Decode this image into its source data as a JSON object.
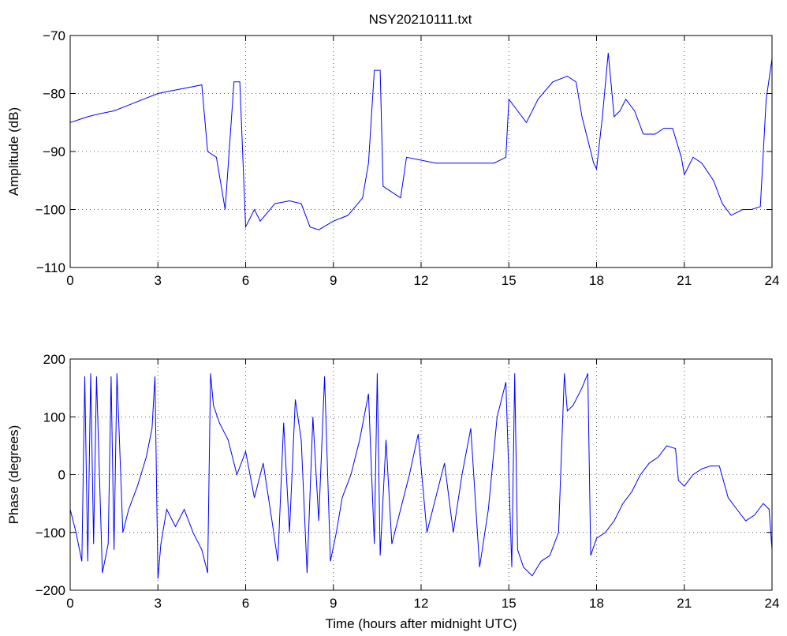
{
  "title": "NSY20210111.txt",
  "colors": {
    "series": "#0000ff",
    "axes": "#000000",
    "background": "#ffffff"
  },
  "chart_data": [
    {
      "type": "line",
      "name": "amplitude-panel",
      "title": "NSY20210111.txt",
      "xlabel": "",
      "ylabel": "Amplitude (dB)",
      "xlim": [
        0,
        24
      ],
      "ylim": [
        -110,
        -70
      ],
      "xticks": [
        0,
        3,
        6,
        9,
        12,
        15,
        18,
        21,
        24
      ],
      "yticks": [
        -110,
        -100,
        -90,
        -80,
        -70
      ],
      "grid": true,
      "series": [
        {
          "color": "#0000ff",
          "x": [
            0,
            0.3,
            0.6,
            1,
            1.5,
            2,
            2.5,
            3,
            3.5,
            4,
            4.5,
            4.7,
            5,
            5.3,
            5.6,
            5.8,
            6,
            6.3,
            6.5,
            7,
            7.5,
            7.9,
            8.2,
            8.5,
            9,
            9.5,
            10,
            10.2,
            10.4,
            10.6,
            10.7,
            11,
            11.3,
            11.5,
            12,
            12.5,
            13,
            13.5,
            14,
            14.5,
            14.9,
            15,
            15.3,
            15.6,
            16,
            16.5,
            17,
            17.3,
            17.5,
            17.7,
            17.9,
            18,
            18.2,
            18.4,
            18.6,
            18.8,
            19,
            19.3,
            19.6,
            20,
            20.3,
            20.6,
            20.9,
            21,
            21.3,
            21.6,
            22,
            22.3,
            22.6,
            23,
            23.3,
            23.6,
            23.8,
            24
          ],
          "y": [
            -85,
            -84.5,
            -84,
            -83.5,
            -83,
            -82,
            -81,
            -80,
            -79.5,
            -79,
            -78.5,
            -90,
            -91,
            -100,
            -78,
            -78,
            -103,
            -100,
            -102,
            -99,
            -98.5,
            -99,
            -103,
            -103.5,
            -102,
            -101,
            -98,
            -92,
            -76,
            -76,
            -96,
            -97,
            -98,
            -91,
            -91.5,
            -92,
            -92,
            -92,
            -92,
            -92,
            -91,
            -81,
            -83,
            -85,
            -81,
            -78,
            -77,
            -78,
            -84,
            -88,
            -92,
            -93,
            -84,
            -73,
            -84,
            -83,
            -81,
            -83,
            -87,
            -87,
            -86,
            -86,
            -91,
            -94,
            -91,
            -92,
            -95,
            -99,
            -101,
            -100,
            -100,
            -99.5,
            -81,
            -74
          ]
        }
      ]
    },
    {
      "type": "line",
      "name": "phase-panel",
      "title": "",
      "xlabel": "Time (hours after midnight UTC)",
      "ylabel": "Phase (degrees)",
      "xlim": [
        0,
        24
      ],
      "ylim": [
        -200,
        200
      ],
      "xticks": [
        0,
        3,
        6,
        9,
        12,
        15,
        18,
        21,
        24
      ],
      "yticks": [
        -200,
        -100,
        0,
        100,
        200
      ],
      "grid": true,
      "series": [
        {
          "color": "#0000ff",
          "x": [
            0,
            0.2,
            0.4,
            0.5,
            0.6,
            0.7,
            0.8,
            0.9,
            1.1,
            1.3,
            1.4,
            1.5,
            1.6,
            1.8,
            2.0,
            2.3,
            2.6,
            2.8,
            2.9,
            3.0,
            3.1,
            3.3,
            3.6,
            3.9,
            4.2,
            4.5,
            4.7,
            4.8,
            4.9,
            5.1,
            5.4,
            5.7,
            6.0,
            6.3,
            6.6,
            6.9,
            7.1,
            7.3,
            7.5,
            7.7,
            7.9,
            8.1,
            8.3,
            8.5,
            8.7,
            8.9,
            9.1,
            9.3,
            9.6,
            9.9,
            10.2,
            10.4,
            10.5,
            10.6,
            10.8,
            11.0,
            11.3,
            11.6,
            11.9,
            12.2,
            12.5,
            12.8,
            13.1,
            13.4,
            13.7,
            14.0,
            14.3,
            14.6,
            14.9,
            15.1,
            15.2,
            15.3,
            15.5,
            15.8,
            16.1,
            16.4,
            16.7,
            16.9,
            17.0,
            17.2,
            17.5,
            17.7,
            17.8,
            18.0,
            18.3,
            18.6,
            18.9,
            19.2,
            19.5,
            19.8,
            20.1,
            20.4,
            20.7,
            20.8,
            21.0,
            21.3,
            21.6,
            21.9,
            22.2,
            22.5,
            22.8,
            23.1,
            23.4,
            23.7,
            23.9,
            24.0
          ],
          "y": [
            -60,
            -100,
            -150,
            170,
            -150,
            175,
            -120,
            170,
            -170,
            -120,
            170,
            -130,
            175,
            -100,
            -60,
            -20,
            30,
            80,
            170,
            -180,
            -120,
            -60,
            -90,
            -60,
            -100,
            -130,
            -170,
            175,
            120,
            90,
            60,
            0,
            40,
            -40,
            20,
            -80,
            -150,
            90,
            -100,
            130,
            60,
            -170,
            100,
            -80,
            170,
            -150,
            -100,
            -40,
            0,
            60,
            140,
            -120,
            175,
            -140,
            60,
            -120,
            -60,
            0,
            70,
            -100,
            -40,
            20,
            -100,
            0,
            80,
            -160,
            -60,
            100,
            160,
            -160,
            175,
            -130,
            -160,
            -175,
            -150,
            -140,
            -100,
            175,
            110,
            120,
            150,
            175,
            -140,
            -110,
            -100,
            -80,
            -50,
            -30,
            0,
            20,
            30,
            50,
            45,
            -10,
            -20,
            0,
            10,
            15,
            15,
            -40,
            -60,
            -80,
            -70,
            -50,
            -60,
            -130
          ]
        }
      ]
    }
  ]
}
